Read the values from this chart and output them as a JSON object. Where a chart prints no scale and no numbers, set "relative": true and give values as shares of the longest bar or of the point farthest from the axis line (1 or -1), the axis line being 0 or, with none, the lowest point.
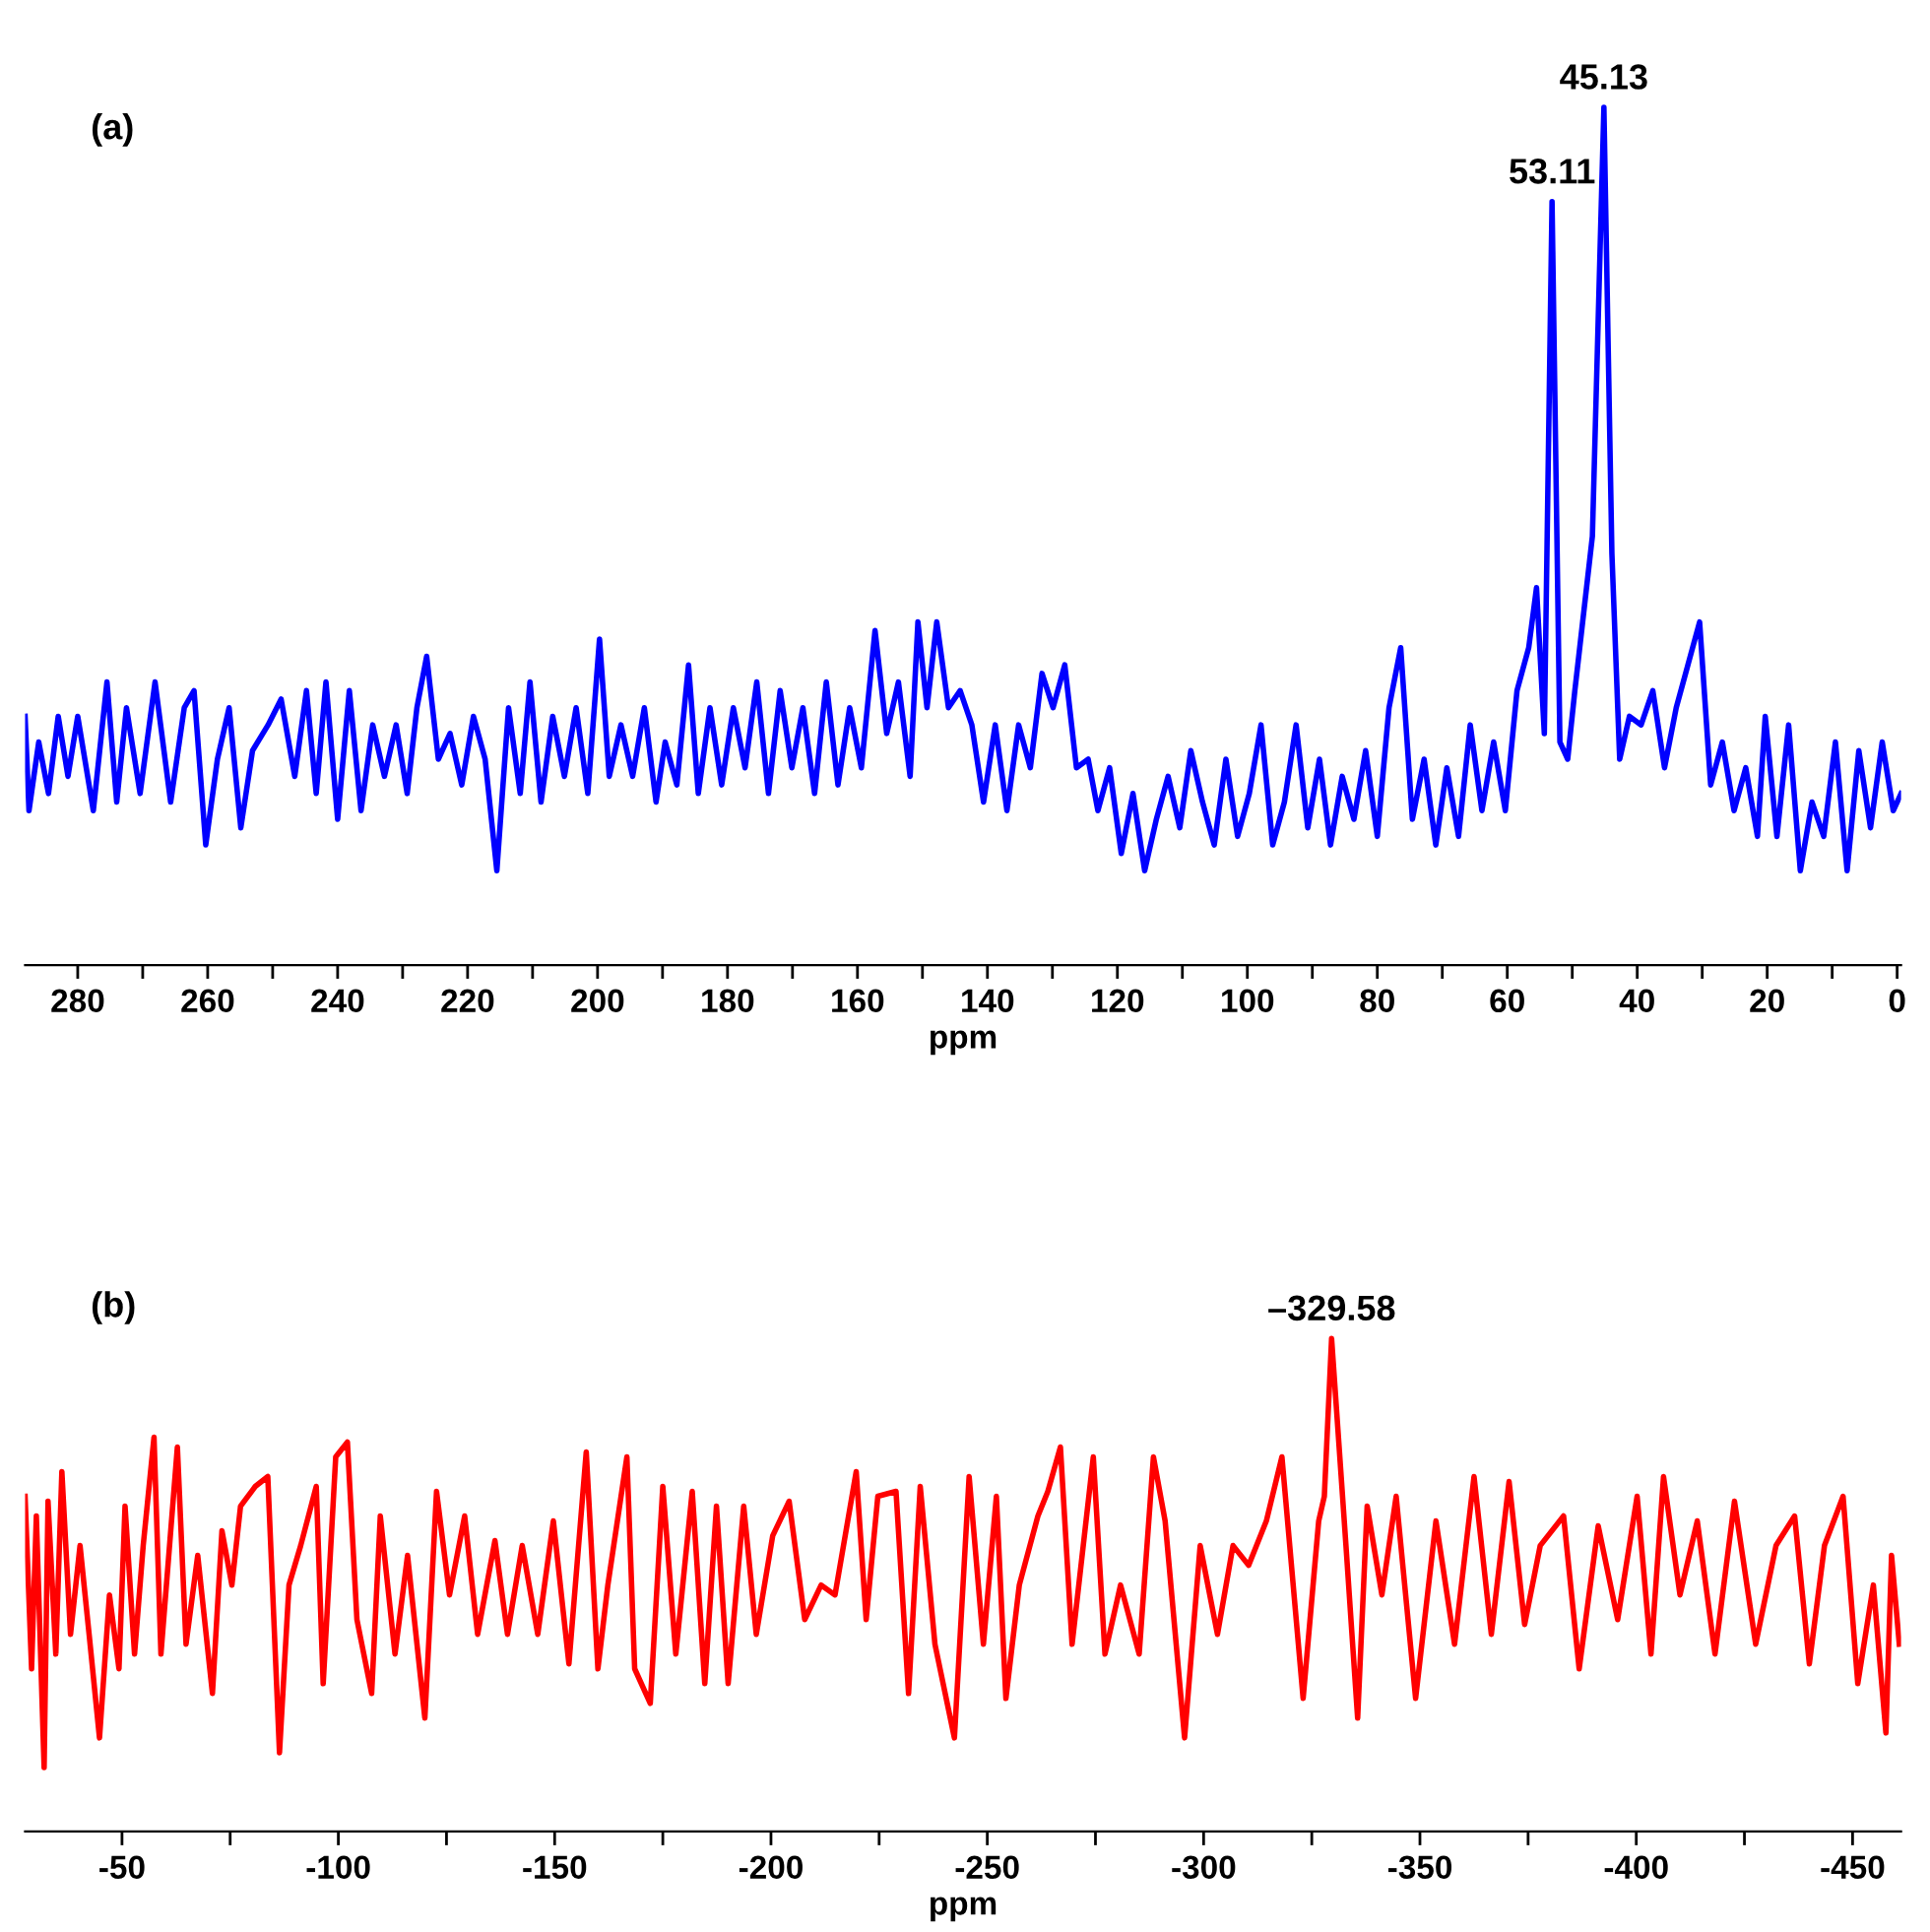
{
  "chart_data": [
    {
      "type": "line",
      "relative": true,
      "xlabel": "ppm",
      "xlim": [
        288.1,
        -0.6
      ],
      "xticks": [
        280,
        {
          "value": 270,
          "label": null
        },
        260,
        {
          "value": 250,
          "label": null
        },
        240,
        {
          "value": 230,
          "label": null
        },
        220,
        {
          "value": 210,
          "label": null
        },
        200,
        {
          "value": 190,
          "label": null
        },
        180,
        {
          "value": 170,
          "label": null
        },
        160,
        {
          "value": 150,
          "label": null
        },
        140,
        {
          "value": 130,
          "label": null
        },
        120,
        {
          "value": 110,
          "label": null
        },
        100,
        {
          "value": 90,
          "label": null
        },
        80,
        {
          "value": 70,
          "label": null
        },
        60,
        {
          "value": 50,
          "label": null
        },
        40,
        {
          "value": 30,
          "label": null
        },
        20,
        {
          "value": 10,
          "label": null
        },
        0
      ],
      "annotations": [
        "(a)",
        {
          "text": "53.11",
          "x": 53.11,
          "y": 0.89
        },
        {
          "text": "45.13",
          "x": 45.13,
          "y": 1.0
        }
      ],
      "series": [
        {
          "color": "#0000ff",
          "x": [
            288.1,
            287.5,
            286.0,
            284.5,
            283.0,
            281.5,
            280.0,
            277.6,
            275.5,
            274.0,
            272.5,
            270.4,
            268.1,
            265.7,
            263.6,
            262.1,
            260.3,
            258.5,
            256.7,
            254.9,
            253.1,
            250.7,
            248.7,
            246.6,
            244.8,
            243.3,
            241.8,
            240.0,
            238.2,
            236.4,
            234.6,
            232.8,
            231.0,
            229.3,
            227.8,
            226.3,
            224.5,
            222.7,
            220.9,
            219.1,
            217.3,
            215.5,
            213.7,
            211.9,
            210.4,
            208.7,
            206.9,
            205.1,
            203.3,
            201.5,
            199.7,
            198.2,
            196.4,
            194.6,
            192.8,
            191.0,
            189.6,
            187.8,
            186.0,
            184.5,
            182.7,
            180.9,
            179.1,
            177.3,
            175.5,
            173.7,
            171.9,
            170.1,
            168.4,
            166.6,
            164.8,
            163.0,
            161.2,
            159.4,
            157.3,
            155.5,
            153.7,
            151.9,
            150.7,
            149.3,
            147.8,
            146.0,
            144.2,
            142.4,
            140.6,
            138.8,
            137.0,
            135.2,
            133.4,
            131.6,
            129.9,
            128.1,
            126.3,
            124.5,
            123.0,
            121.2,
            119.4,
            117.6,
            115.8,
            114.0,
            112.2,
            110.4,
            108.7,
            106.9,
            105.1,
            103.3,
            101.5,
            99.7,
            97.9,
            96.1,
            94.3,
            92.5,
            90.7,
            88.9,
            87.2,
            85.4,
            83.6,
            81.8,
            80.0,
            78.2,
            76.4,
            74.6,
            72.8,
            71.0,
            69.3,
            67.5,
            65.7,
            63.9,
            62.1,
            60.3,
            58.5,
            56.7,
            55.5,
            54.3,
            53.11,
            51.9,
            50.7,
            49.6,
            48.4,
            46.9,
            45.13,
            43.9,
            42.7,
            41.2,
            39.4,
            37.6,
            35.8,
            34.0,
            32.2,
            30.4,
            28.7,
            26.9,
            25.1,
            23.3,
            21.5,
            20.3,
            18.5,
            16.7,
            14.9,
            13.1,
            11.3,
            9.5,
            7.7,
            5.9,
            4.1,
            2.3,
            0.6,
            -0.6
          ],
          "values": [
            0.29,
            0.18,
            0.26,
            0.2,
            0.29,
            0.22,
            0.29,
            0.18,
            0.33,
            0.19,
            0.3,
            0.2,
            0.33,
            0.19,
            0.3,
            0.32,
            0.14,
            0.24,
            0.3,
            0.16,
            0.25,
            0.28,
            0.31,
            0.22,
            0.32,
            0.2,
            0.33,
            0.17,
            0.32,
            0.18,
            0.28,
            0.22,
            0.28,
            0.2,
            0.3,
            0.36,
            0.24,
            0.27,
            0.21,
            0.29,
            0.24,
            0.11,
            0.3,
            0.2,
            0.33,
            0.19,
            0.29,
            0.22,
            0.3,
            0.2,
            0.38,
            0.22,
            0.28,
            0.22,
            0.3,
            0.19,
            0.26,
            0.21,
            0.35,
            0.2,
            0.3,
            0.21,
            0.3,
            0.23,
            0.33,
            0.2,
            0.32,
            0.23,
            0.3,
            0.2,
            0.33,
            0.21,
            0.3,
            0.23,
            0.39,
            0.27,
            0.33,
            0.22,
            0.4,
            0.3,
            0.4,
            0.3,
            0.32,
            0.28,
            0.19,
            0.28,
            0.18,
            0.28,
            0.23,
            0.34,
            0.3,
            0.35,
            0.23,
            0.24,
            0.18,
            0.23,
            0.13,
            0.2,
            0.11,
            0.17,
            0.22,
            0.16,
            0.25,
            0.19,
            0.14,
            0.24,
            0.15,
            0.2,
            0.28,
            0.14,
            0.19,
            0.28,
            0.16,
            0.24,
            0.14,
            0.22,
            0.17,
            0.25,
            0.15,
            0.3,
            0.37,
            0.17,
            0.24,
            0.14,
            0.23,
            0.15,
            0.28,
            0.18,
            0.26,
            0.18,
            0.32,
            0.37,
            0.44,
            0.27,
            0.89,
            0.26,
            0.24,
            0.32,
            0.4,
            0.5,
            1.0,
            0.48,
            0.24,
            0.29,
            0.28,
            0.32,
            0.23,
            0.3,
            0.35,
            0.4,
            0.21,
            0.26,
            0.18,
            0.23,
            0.15,
            0.29,
            0.15,
            0.28,
            0.11,
            0.19,
            0.15,
            0.26,
            0.11,
            0.25,
            0.16,
            0.26,
            0.18,
            0.2
          ]
        }
      ]
    },
    {
      "type": "line",
      "relative": true,
      "xlabel": "ppm",
      "xlim": [
        -27.6,
        -461.2
      ],
      "xticks": [
        -50,
        {
          "value": -75,
          "label": null
        },
        -100,
        {
          "value": -125,
          "label": null
        },
        -150,
        {
          "value": -175,
          "label": null
        },
        -200,
        {
          "value": -225,
          "label": null
        },
        -250,
        {
          "value": -275,
          "label": null
        },
        -300,
        {
          "value": -325,
          "label": null
        },
        -350,
        {
          "value": -375,
          "label": null
        },
        -400,
        {
          "value": -425,
          "label": null
        },
        -450
      ],
      "annotations": [
        "(b)",
        {
          "text": "–329.58",
          "x": -329.58,
          "y": 1.0
        }
      ],
      "series": [
        {
          "color": "#ff0000",
          "x": [
            -27.6,
            -29.1,
            -30.2,
            -32.0,
            -32.9,
            -34.7,
            -36.1,
            -38.1,
            -40.3,
            -42.4,
            -44.8,
            -47.1,
            -49.3,
            -50.7,
            -52.9,
            -54.9,
            -57.4,
            -59.0,
            -62.8,
            -64.8,
            -67.5,
            -70.9,
            -73.1,
            -75.4,
            -77.4,
            -80.8,
            -83.7,
            -86.4,
            -88.6,
            -91.3,
            -94.9,
            -96.5,
            -99.4,
            -102.1,
            -104.3,
            -107.7,
            -109.7,
            -113.1,
            -116.0,
            -120.0,
            -122.7,
            -125.7,
            -129.2,
            -132.2,
            -136.2,
            -139.1,
            -142.5,
            -146.1,
            -149.7,
            -153.3,
            -157.3,
            -160.0,
            -162.3,
            -166.7,
            -168.5,
            -172.1,
            -175.0,
            -178.0,
            -181.8,
            -184.7,
            -187.4,
            -190.1,
            -193.7,
            -196.6,
            -200.4,
            -204.2,
            -207.8,
            -211.6,
            -214.8,
            -219.7,
            -222.0,
            -224.7,
            -228.9,
            -231.8,
            -234.5,
            -237.9,
            -242.4,
            -245.8,
            -249.1,
            -252.1,
            -254.3,
            -257.4,
            -261.7,
            -264.0,
            -266.9,
            -269.6,
            -274.5,
            -277.2,
            -280.8,
            -285.1,
            -288.4,
            -291.1,
            -295.6,
            -299.2,
            -303.2,
            -306.8,
            -310.4,
            -314.5,
            -318.1,
            -323.0,
            -326.6,
            -327.9,
            -329.58,
            -332.9,
            -335.6,
            -337.8,
            -341.2,
            -344.5,
            -349.0,
            -353.7,
            -358.0,
            -362.5,
            -366.5,
            -370.6,
            -374.2,
            -377.8,
            -383.2,
            -386.8,
            -391.2,
            -395.7,
            -400.2,
            -403.4,
            -406.3,
            -410.1,
            -414.1,
            -418.2,
            -422.7,
            -427.6,
            -432.3,
            -436.6,
            -440.0,
            -443.5,
            -447.8,
            -451.2,
            -454.8,
            -457.7,
            -459.0,
            -460.8
          ],
          "values": [
            0.68,
            0.33,
            0.64,
            0.13,
            0.67,
            0.36,
            0.73,
            0.4,
            0.58,
            0.4,
            0.19,
            0.48,
            0.33,
            0.66,
            0.36,
            0.58,
            0.8,
            0.36,
            0.78,
            0.38,
            0.56,
            0.28,
            0.61,
            0.5,
            0.66,
            0.7,
            0.72,
            0.16,
            0.5,
            0.58,
            0.7,
            0.3,
            0.76,
            0.79,
            0.43,
            0.28,
            0.64,
            0.36,
            0.56,
            0.23,
            0.69,
            0.48,
            0.64,
            0.4,
            0.59,
            0.4,
            0.58,
            0.4,
            0.63,
            0.34,
            0.77,
            0.33,
            0.5,
            0.76,
            0.33,
            0.26,
            0.7,
            0.36,
            0.69,
            0.3,
            0.66,
            0.3,
            0.66,
            0.4,
            0.6,
            0.67,
            0.43,
            0.5,
            0.48,
            0.73,
            0.43,
            0.68,
            0.69,
            0.28,
            0.7,
            0.38,
            0.19,
            0.72,
            0.38,
            0.68,
            0.27,
            0.5,
            0.64,
            0.69,
            0.78,
            0.38,
            0.76,
            0.36,
            0.5,
            0.36,
            0.76,
            0.63,
            0.19,
            0.58,
            0.4,
            0.58,
            0.54,
            0.63,
            0.76,
            0.27,
            0.63,
            0.68,
            1.0,
            0.58,
            0.23,
            0.66,
            0.48,
            0.68,
            0.27,
            0.63,
            0.38,
            0.72,
            0.4,
            0.71,
            0.42,
            0.58,
            0.64,
            0.33,
            0.62,
            0.43,
            0.68,
            0.36,
            0.72,
            0.48,
            0.63,
            0.36,
            0.67,
            0.38,
            0.58,
            0.64,
            0.34,
            0.58,
            0.68,
            0.3,
            0.5,
            0.2,
            0.56,
            0.38
          ]
        }
      ]
    }
  ]
}
